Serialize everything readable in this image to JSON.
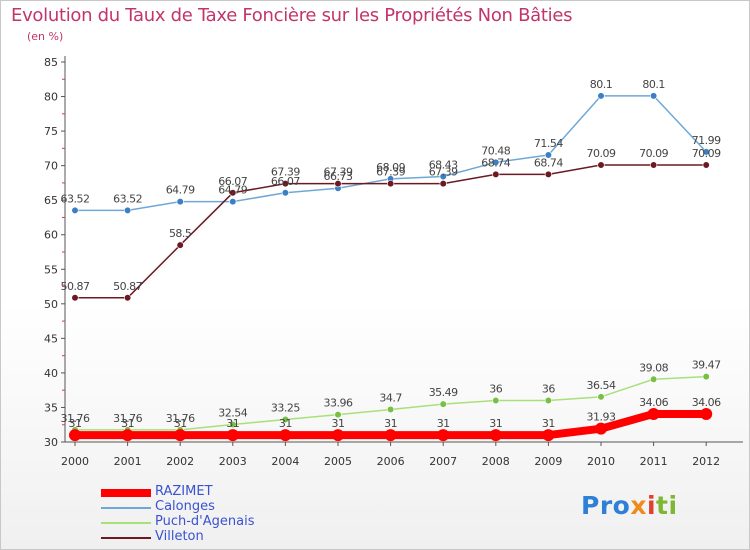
{
  "title": "Evolution du Taux de Taxe Foncière sur les Propriétés Non Bâties",
  "subtitle": "(en %)",
  "logo": [
    "Pro",
    "x",
    "i",
    "ti"
  ],
  "logo_colors": [
    "#2e7fd6",
    "#f08a1c",
    "#e0402e",
    "#7cb832"
  ],
  "chart_data": {
    "type": "line",
    "x": [
      "2000",
      "2001",
      "2002",
      "2003",
      "2004",
      "2005",
      "2006",
      "2007",
      "2008",
      "2009",
      "2010",
      "2011",
      "2012"
    ],
    "ylim": [
      30,
      85
    ],
    "yticks": [
      30,
      35,
      40,
      45,
      50,
      55,
      60,
      65,
      70,
      75,
      80,
      85
    ],
    "grid": false,
    "legend_position": "bottom-left",
    "series": [
      {
        "name": "Calonges",
        "color": "#6fa8d8",
        "marker_color": "#3b7fc4",
        "values": [
          63.52,
          63.52,
          64.79,
          64.79,
          66.07,
          66.73,
          68.09,
          68.43,
          70.48,
          71.54,
          80.1,
          80.1,
          71.99
        ],
        "labels": [
          "63.52",
          "63.52",
          "64.79",
          "64.79",
          "66.07",
          "66.73",
          "68.09",
          "68.43",
          "70.48",
          "71.54",
          "80.1",
          "80.1",
          "71.99"
        ]
      },
      {
        "name": "Villeton",
        "color": "#6b1a24",
        "marker_color": "#6b1a24",
        "values": [
          50.87,
          50.87,
          58.5,
          66.07,
          67.39,
          67.39,
          67.39,
          67.39,
          68.74,
          68.74,
          70.09,
          70.09,
          70.09
        ],
        "labels": [
          "50.87",
          "50.87",
          "58.5",
          "66.07",
          "67.39",
          "67.39",
          "67.39",
          "67.39",
          "68.74",
          "68.74",
          "70.09",
          "70.09",
          "70.09"
        ]
      },
      {
        "name": "Puch-d'Agenais",
        "color": "#a8e07a",
        "marker_color": "#78c043",
        "values": [
          31.76,
          31.76,
          31.76,
          32.54,
          33.25,
          33.96,
          34.7,
          35.49,
          36,
          36,
          36.54,
          39.08,
          39.47
        ],
        "labels": [
          "31.76",
          "31.76",
          "31.76",
          "32.54",
          "33.25",
          "33.96",
          "34.7",
          "35.49",
          "36",
          "36",
          "36.54",
          "39.08",
          "39.47"
        ]
      },
      {
        "name": "RAZIMET",
        "color": "#ff0000",
        "marker_color": "#ff0000",
        "values": [
          31,
          31,
          31,
          31,
          31,
          31,
          31,
          31,
          31,
          31,
          31.93,
          34.06,
          34.06
        ],
        "labels": [
          "31",
          "31",
          "31",
          "31",
          "31",
          "31",
          "31",
          "31",
          "31",
          "31",
          "31.93",
          "34.06",
          "34.06"
        ]
      }
    ]
  }
}
